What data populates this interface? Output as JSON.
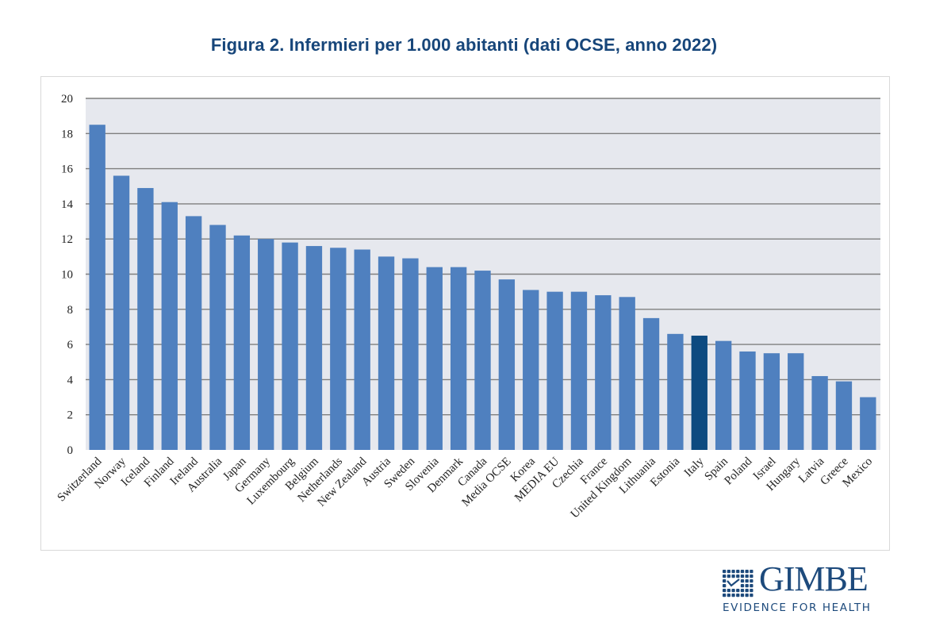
{
  "chart_data": {
    "type": "bar",
    "title": "Figura 2. Infermieri per 1.000 abitanti (dati OCSE, anno 2022)",
    "xlabel": "",
    "ylabel": "",
    "ylim": [
      0,
      20
    ],
    "yticks": [
      0,
      2,
      4,
      6,
      8,
      10,
      12,
      14,
      16,
      18,
      20
    ],
    "grid": true,
    "legend": "none",
    "categories": [
      "Switzerland",
      "Norway",
      "Iceland",
      "Finland",
      "Ireland",
      "Australia",
      "Japan",
      "Germany",
      "Luxembourg",
      "Belgium",
      "Netherlands",
      "New Zealand",
      "Austria",
      "Sweden",
      "Slovenia",
      "Denmark",
      "Canada",
      "Media OCSE",
      "Korea",
      "MEDIA EU",
      "Czechia",
      "France",
      "United Kingdom",
      "Lithuania",
      "Estonia",
      "Italy",
      "Spain",
      "Poland",
      "Israel",
      "Hungary",
      "Latvia",
      "Greece",
      "Mexico"
    ],
    "values": [
      18.5,
      15.6,
      14.9,
      14.1,
      13.3,
      12.8,
      12.2,
      12.0,
      11.8,
      11.6,
      11.5,
      11.4,
      11.0,
      10.9,
      10.4,
      10.4,
      10.2,
      9.7,
      9.1,
      9.0,
      9.0,
      8.8,
      8.7,
      7.5,
      6.6,
      6.5,
      6.2,
      5.6,
      5.5,
      5.5,
      4.2,
      3.9,
      3.0
    ],
    "highlight": "Italy",
    "colors": {
      "bar": "#4f80bf",
      "highlight": "#0d4a80",
      "plot_background": "#e6e8ee",
      "gridline": "#7f7f7f"
    }
  },
  "logo": {
    "word": "GIMBE",
    "tagline": "EVIDENCE FOR HEALTH",
    "color": "#1d4a7c"
  }
}
